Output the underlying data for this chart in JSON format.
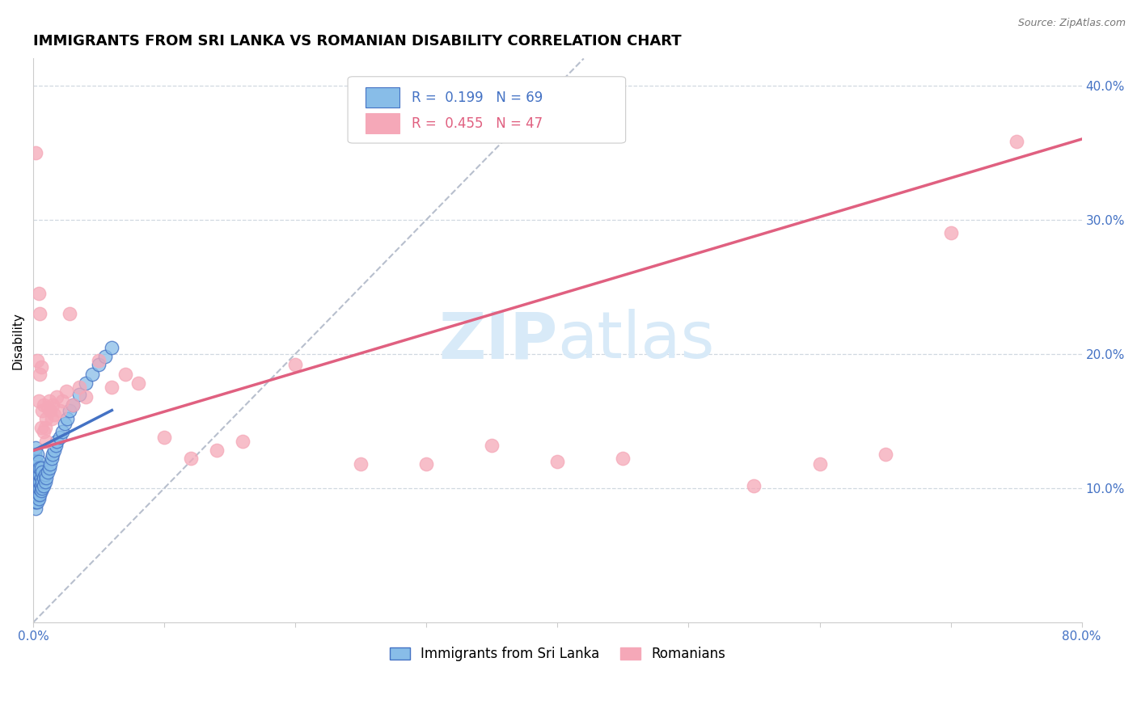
{
  "title": "IMMIGRANTS FROM SRI LANKA VS ROMANIAN DISABILITY CORRELATION CHART",
  "source_text": "Source: ZipAtlas.com",
  "ylabel": "Disability",
  "xlim": [
    0.0,
    0.8
  ],
  "ylim": [
    0.0,
    0.42
  ],
  "xticks": [
    0.0,
    0.1,
    0.2,
    0.3,
    0.4,
    0.5,
    0.6,
    0.7,
    0.8
  ],
  "xticklabels": [
    "0.0%",
    "",
    "",
    "",
    "",
    "",
    "",
    "",
    "80.0%"
  ],
  "yticks_right": [
    0.1,
    0.2,
    0.3,
    0.4
  ],
  "ytick_labels_right": [
    "10.0%",
    "20.0%",
    "30.0%",
    "40.0%"
  ],
  "r_sri_lanka": 0.199,
  "n_sri_lanka": 69,
  "r_romanians": 0.455,
  "n_romanians": 47,
  "color_sri_lanka": "#88bde8",
  "color_romanians": "#f5a8b8",
  "line_color_sri_lanka": "#4472c4",
  "line_color_romanians": "#e06080",
  "ref_line_color": "#b0b8c8",
  "grid_color": "#d0d8e0",
  "watermark_color": "#d8eaf8",
  "title_fontsize": 13,
  "axis_label_fontsize": 11,
  "tick_fontsize": 11,
  "legend_fontsize": 12,
  "sri_lanka_x": [
    0.001,
    0.001,
    0.001,
    0.001,
    0.001,
    0.001,
    0.001,
    0.001,
    0.002,
    0.002,
    0.002,
    0.002,
    0.002,
    0.002,
    0.002,
    0.002,
    0.002,
    0.003,
    0.003,
    0.003,
    0.003,
    0.003,
    0.003,
    0.003,
    0.003,
    0.004,
    0.004,
    0.004,
    0.004,
    0.004,
    0.004,
    0.004,
    0.005,
    0.005,
    0.005,
    0.005,
    0.005,
    0.006,
    0.006,
    0.006,
    0.006,
    0.007,
    0.007,
    0.007,
    0.008,
    0.008,
    0.009,
    0.009,
    0.01,
    0.011,
    0.012,
    0.013,
    0.014,
    0.015,
    0.016,
    0.017,
    0.018,
    0.02,
    0.022,
    0.024,
    0.026,
    0.028,
    0.03,
    0.035,
    0.04,
    0.045,
    0.05,
    0.055,
    0.06
  ],
  "sri_lanka_y": [
    0.09,
    0.095,
    0.1,
    0.105,
    0.11,
    0.115,
    0.12,
    0.125,
    0.085,
    0.09,
    0.095,
    0.1,
    0.105,
    0.11,
    0.115,
    0.12,
    0.13,
    0.09,
    0.095,
    0.1,
    0.105,
    0.108,
    0.112,
    0.118,
    0.125,
    0.092,
    0.096,
    0.1,
    0.105,
    0.11,
    0.115,
    0.12,
    0.095,
    0.1,
    0.105,
    0.11,
    0.115,
    0.098,
    0.102,
    0.108,
    0.115,
    0.1,
    0.105,
    0.112,
    0.102,
    0.108,
    0.105,
    0.11,
    0.108,
    0.112,
    0.115,
    0.118,
    0.122,
    0.125,
    0.128,
    0.132,
    0.135,
    0.138,
    0.142,
    0.148,
    0.152,
    0.158,
    0.162,
    0.17,
    0.178,
    0.185,
    0.192,
    0.198,
    0.205
  ],
  "romanians_x": [
    0.002,
    0.003,
    0.004,
    0.004,
    0.005,
    0.005,
    0.006,
    0.006,
    0.007,
    0.008,
    0.009,
    0.01,
    0.011,
    0.012,
    0.013,
    0.014,
    0.015,
    0.016,
    0.018,
    0.02,
    0.022,
    0.025,
    0.028,
    0.03,
    0.035,
    0.04,
    0.05,
    0.06,
    0.07,
    0.08,
    0.1,
    0.12,
    0.14,
    0.16,
    0.2,
    0.25,
    0.3,
    0.35,
    0.4,
    0.45,
    0.55,
    0.6,
    0.65,
    0.7,
    0.75,
    0.01,
    0.008
  ],
  "romanians_y": [
    0.35,
    0.195,
    0.245,
    0.165,
    0.185,
    0.23,
    0.145,
    0.19,
    0.158,
    0.162,
    0.145,
    0.152,
    0.16,
    0.165,
    0.158,
    0.152,
    0.162,
    0.155,
    0.168,
    0.158,
    0.165,
    0.172,
    0.23,
    0.162,
    0.175,
    0.168,
    0.195,
    0.175,
    0.185,
    0.178,
    0.138,
    0.122,
    0.128,
    0.135,
    0.192,
    0.118,
    0.118,
    0.132,
    0.12,
    0.122,
    0.102,
    0.118,
    0.125,
    0.29,
    0.358,
    0.135,
    0.142
  ],
  "ro_line_x0": 0.0,
  "ro_line_y0": 0.128,
  "ro_line_x1": 0.8,
  "ro_line_y1": 0.36,
  "sl_line_x0": 0.0,
  "sl_line_y0": 0.128,
  "sl_line_x1": 0.06,
  "sl_line_y1": 0.158,
  "ref_line_x0": 0.0,
  "ref_line_y0": 0.0,
  "ref_line_x1": 0.42,
  "ref_line_y1": 0.42
}
